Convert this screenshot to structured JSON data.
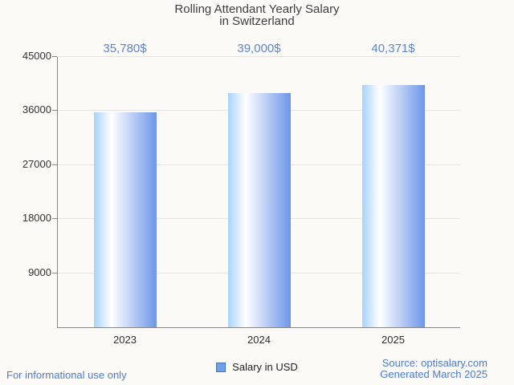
{
  "title": {
    "line1": "Rolling Attendant Yearly Salary",
    "line2": "in Switzerland"
  },
  "chart_data": {
    "type": "bar",
    "title": "Rolling Attendant Yearly Salary in Switzerland",
    "categories": [
      "2023",
      "2024",
      "2025"
    ],
    "values": [
      35780,
      39000,
      40371
    ],
    "value_labels": [
      "35,780$",
      "39,000$",
      "40,371$"
    ],
    "series_name": "Salary in USD",
    "xlabel": "",
    "ylabel": "",
    "ylim": [
      0,
      45000
    ],
    "yticks": [
      9000,
      18000,
      27000,
      36000,
      45000
    ],
    "grid": true,
    "legend_position": "bottom"
  },
  "legend": {
    "label": "Salary in USD"
  },
  "footer": {
    "left": "For informational use only",
    "source": "Source: optisalary.com",
    "generated": "Generated March 2025"
  },
  "colors": {
    "background": "#fbfaf6",
    "title_text": "#3f3f3f",
    "axis_line": "#878787",
    "gridline": "#e6e5e1",
    "value_label": "#5c85d2",
    "bar_left": "#a7d3fd",
    "bar_mid": "#ffffff",
    "bar_right": "#6d96e8",
    "legend_fill": "#6fa0ee",
    "legend_border": "#4272ba",
    "footer_text": "#4d7bd6"
  }
}
